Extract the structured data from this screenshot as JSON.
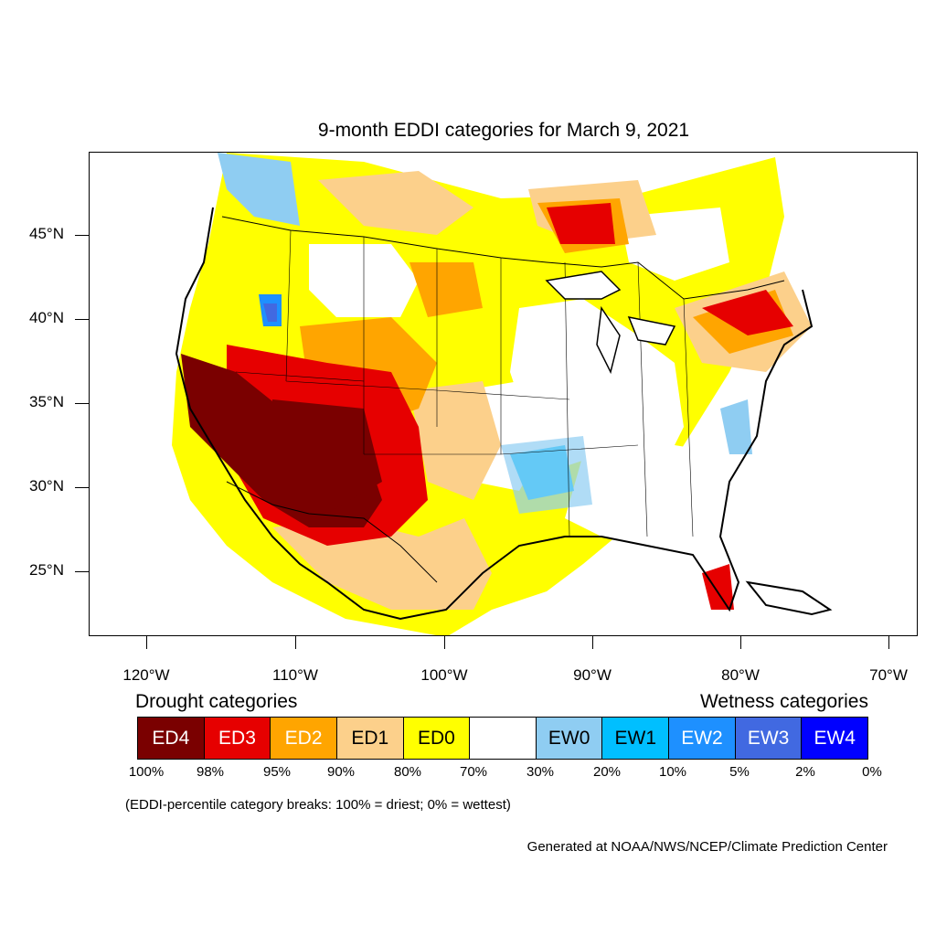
{
  "title": "9-month EDDI categories for March 9, 2021",
  "axes": {
    "lat_labels": [
      "45°N",
      "40°N",
      "35°N",
      "30°N",
      "25°N"
    ],
    "lon_labels": [
      "120°W",
      "110°W",
      "100°W",
      "90°W",
      "80°W",
      "70°W"
    ]
  },
  "legend": {
    "drought_heading": "Drought categories",
    "wetness_heading": "Wetness categories",
    "categories": [
      {
        "label": "ED4",
        "color": "#7a0000",
        "text_color": "#ffffff"
      },
      {
        "label": "ED3",
        "color": "#e60000",
        "text_color": "#ffffff"
      },
      {
        "label": "ED2",
        "color": "#ffa500",
        "text_color": "#ffffff"
      },
      {
        "label": "ED1",
        "color": "#fcd08b",
        "text_color": "#000000"
      },
      {
        "label": "ED0",
        "color": "#ffff00",
        "text_color": "#000000"
      },
      {
        "label": "",
        "color": "#ffffff",
        "text_color": "#000000"
      },
      {
        "label": "EW0",
        "color": "#8fcdf2",
        "text_color": "#000000"
      },
      {
        "label": "EW1",
        "color": "#00bfff",
        "text_color": "#000000"
      },
      {
        "label": "EW2",
        "color": "#1e90ff",
        "text_color": "#ffffff"
      },
      {
        "label": "EW3",
        "color": "#4169e1",
        "text_color": "#ffffff"
      },
      {
        "label": "EW4",
        "color": "#0000ff",
        "text_color": "#ffffff"
      }
    ],
    "percent_breaks": [
      "100%",
      "98%",
      "95%",
      "90%",
      "80%",
      "70%",
      "30%",
      "20%",
      "10%",
      "5%",
      "2%",
      "0%"
    ]
  },
  "breaks_note": "(EDDI-percentile category breaks: 100% = driest; 0% = wettest)",
  "credit": "Generated at NOAA/NWS/NCEP/Climate Prediction Center"
}
